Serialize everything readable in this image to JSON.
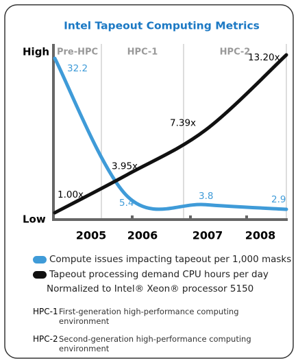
{
  "chart_data": {
    "type": "line",
    "title": "Intel Tapeout Computing Metrics",
    "y_high_label": "High",
    "y_low_label": "Low",
    "phases": [
      "Pre-HPC",
      "HPC-1",
      "HPC-2"
    ],
    "categories": [
      "2005",
      "2006",
      "2007",
      "2008"
    ],
    "series": [
      {
        "name": "Compute issues impacting tapeout per 1,000 masks",
        "color": "#3f9bd8",
        "values": [
          32.2,
          5.4,
          3.8,
          2.9
        ]
      },
      {
        "name": "Tapeout processing demand CPU hours per day",
        "color": "#111111",
        "values": [
          1.0,
          3.95,
          7.39,
          13.2
        ],
        "value_labels": [
          "1.00x",
          "3.95x",
          "7.39x",
          "13.20x"
        ]
      }
    ],
    "note": "Normalized to Intel® Xeon® processor 5150",
    "definitions": [
      {
        "term": "HPC-1",
        "text": "First-generation high-performance computing environment"
      },
      {
        "term": "HPC-2",
        "text": "Second-generation high-performance computing environment"
      }
    ]
  }
}
